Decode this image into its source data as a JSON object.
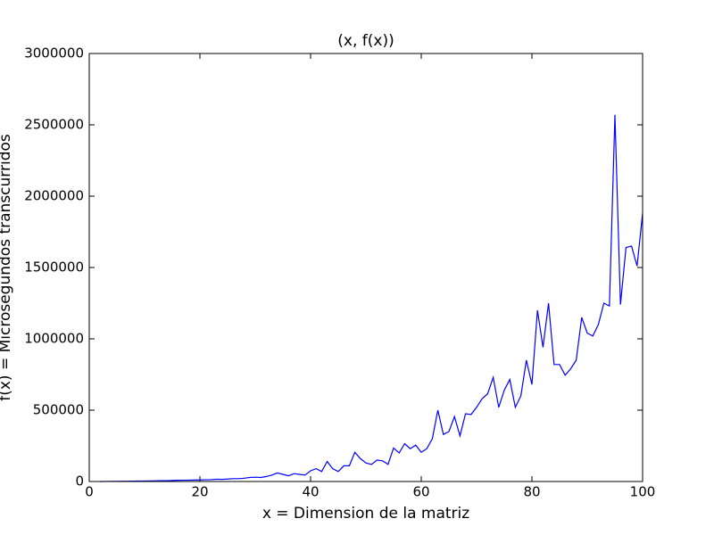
{
  "chart_data": {
    "type": "line",
    "title": "(x, f(x))",
    "xlabel": "x = Dimension de la matriz",
    "ylabel": "f(x) = Microsegundos transcurridos",
    "x": [
      2,
      3,
      4,
      5,
      6,
      7,
      8,
      9,
      10,
      11,
      12,
      13,
      14,
      15,
      16,
      17,
      18,
      19,
      20,
      21,
      22,
      23,
      24,
      25,
      26,
      27,
      28,
      29,
      30,
      31,
      32,
      33,
      34,
      35,
      36,
      37,
      38,
      39,
      40,
      41,
      42,
      43,
      44,
      45,
      46,
      47,
      48,
      49,
      50,
      51,
      52,
      53,
      54,
      55,
      56,
      57,
      58,
      59,
      60,
      61,
      62,
      63,
      64,
      65,
      66,
      67,
      68,
      69,
      70,
      71,
      72,
      73,
      74,
      75,
      76,
      77,
      78,
      79,
      80,
      81,
      82,
      83,
      84,
      85,
      86,
      87,
      88,
      89,
      90,
      91,
      92,
      93,
      94,
      95,
      96,
      97,
      98,
      99,
      100
    ],
    "series": [
      {
        "name": "f(x)",
        "color": "#0000ff",
        "values": [
          100,
          300,
          600,
          1000,
          1500,
          2000,
          2500,
          3000,
          3500,
          4000,
          5000,
          5500,
          6000,
          7000,
          8500,
          9000,
          9500,
          10000,
          11000,
          12000,
          13000,
          16000,
          15000,
          17000,
          20000,
          20000,
          23000,
          28000,
          30000,
          28000,
          35000,
          45000,
          60000,
          50000,
          40000,
          55000,
          50000,
          45000,
          75000,
          90000,
          70000,
          140000,
          90000,
          70000,
          110000,
          110000,
          205000,
          160000,
          130000,
          120000,
          150000,
          145000,
          120000,
          235000,
          200000,
          265000,
          230000,
          255000,
          205000,
          230000,
          300000,
          500000,
          330000,
          350000,
          455000,
          320000,
          475000,
          470000,
          520000,
          580000,
          615000,
          730000,
          520000,
          640000,
          715000,
          520000,
          600000,
          850000,
          680000,
          1200000,
          940000,
          1250000,
          820000,
          820000,
          745000,
          790000,
          850000,
          1150000,
          1040000,
          1020000,
          1100000,
          1250000,
          1230000,
          2570000,
          1240000,
          1640000,
          1650000,
          1510000,
          1880000
        ]
      }
    ],
    "xlim": [
      0,
      100
    ],
    "xticks": [
      0,
      20,
      40,
      60,
      80,
      100
    ],
    "ylim": [
      0,
      3000000
    ],
    "yticks": [
      0,
      500000,
      1000000,
      1500000,
      2000000,
      2500000,
      3000000
    ],
    "grid": false
  }
}
